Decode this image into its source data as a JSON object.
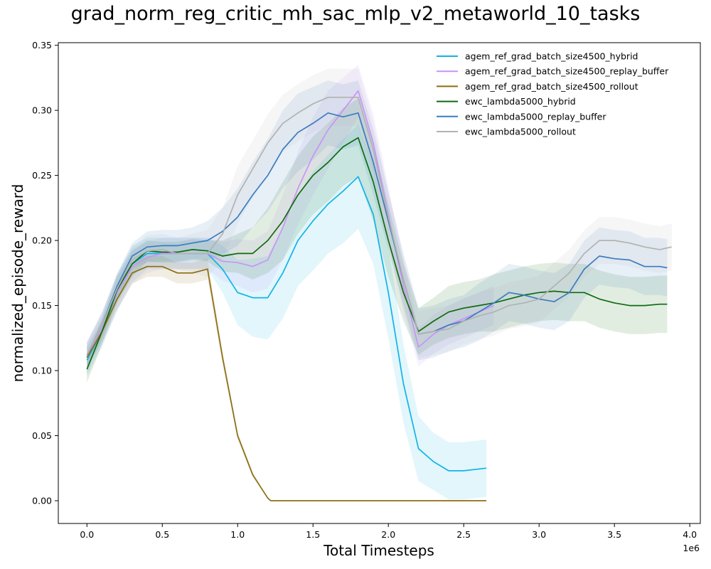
{
  "chart_data": {
    "type": "line",
    "title": "grad_norm_reg_critic_mh_sac_mlp_v2_metaworld_10_tasks",
    "xlabel": "Total Timesteps",
    "ylabel": "normalized_episode_reward",
    "x_offset_label": "1e6",
    "xlim": [
      -0.19,
      4.07
    ],
    "ylim": [
      -0.0175,
      0.352
    ],
    "x_ticks": [
      0.0,
      0.5,
      1.0,
      1.5,
      2.0,
      2.5,
      3.0,
      3.5,
      4.0
    ],
    "x_tick_labels": [
      "0.0",
      "0.5",
      "1.0",
      "1.5",
      "2.0",
      "2.5",
      "3.0",
      "3.5",
      "4.0"
    ],
    "y_ticks": [
      0.0,
      0.05,
      0.1,
      0.15,
      0.2,
      0.25,
      0.3,
      0.35
    ],
    "y_tick_labels": [
      "0.00",
      "0.05",
      "0.10",
      "0.15",
      "0.20",
      "0.25",
      "0.30",
      "0.35"
    ],
    "grid": false,
    "legend_position": "top-right",
    "series": [
      {
        "name": "agem_ref_grad_batch_size4500_hybrid",
        "color": "#12b3e6",
        "x": [
          0.0,
          0.1,
          0.2,
          0.3,
          0.4,
          0.5,
          0.6,
          0.7,
          0.8,
          0.9,
          1.0,
          1.1,
          1.2,
          1.3,
          1.4,
          1.5,
          1.6,
          1.7,
          1.8,
          1.9,
          2.0,
          2.1,
          2.2,
          2.3,
          2.4,
          2.5,
          2.65
        ],
        "y": [
          0.108,
          0.13,
          0.16,
          0.182,
          0.19,
          0.19,
          0.19,
          0.19,
          0.19,
          0.178,
          0.16,
          0.156,
          0.156,
          0.175,
          0.2,
          0.215,
          0.228,
          0.238,
          0.249,
          0.22,
          0.16,
          0.09,
          0.04,
          0.03,
          0.023,
          0.023,
          0.025
        ],
        "band": [
          0.012,
          0.012,
          0.014,
          0.014,
          0.012,
          0.012,
          0.012,
          0.012,
          0.012,
          0.018,
          0.025,
          0.03,
          0.032,
          0.035,
          0.035,
          0.038,
          0.038,
          0.04,
          0.04,
          0.038,
          0.035,
          0.03,
          0.025,
          0.022,
          0.022,
          0.022,
          0.022
        ]
      },
      {
        "name": "agem_ref_grad_batch_size4500_replay_buffer",
        "color": "#c994f7",
        "x": [
          0.0,
          0.1,
          0.2,
          0.3,
          0.4,
          0.5,
          0.6,
          0.7,
          0.8,
          0.9,
          1.0,
          1.1,
          1.2,
          1.3,
          1.4,
          1.5,
          1.6,
          1.7,
          1.8,
          1.9,
          2.0,
          2.1,
          2.2,
          2.3,
          2.4,
          2.5,
          2.6,
          2.7
        ],
        "y": [
          0.11,
          0.132,
          0.16,
          0.18,
          0.187,
          0.19,
          0.19,
          0.19,
          0.19,
          0.184,
          0.183,
          0.18,
          0.185,
          0.21,
          0.24,
          0.265,
          0.285,
          0.3,
          0.315,
          0.275,
          0.22,
          0.165,
          0.118,
          0.128,
          0.135,
          0.14,
          0.145,
          0.15
        ],
        "band": [
          0.012,
          0.012,
          0.014,
          0.014,
          0.012,
          0.012,
          0.012,
          0.012,
          0.012,
          0.015,
          0.018,
          0.02,
          0.022,
          0.025,
          0.028,
          0.03,
          0.03,
          0.025,
          0.02,
          0.022,
          0.022,
          0.02,
          0.015,
          0.015,
          0.015,
          0.015,
          0.015,
          0.015
        ]
      },
      {
        "name": "agem_ref_grad_batch_size4500_rollout",
        "color": "#8c6d12",
        "x": [
          0.0,
          0.1,
          0.2,
          0.3,
          0.4,
          0.5,
          0.6,
          0.7,
          0.8,
          0.9,
          1.0,
          1.1,
          1.2,
          1.22,
          1.4,
          1.6,
          1.8,
          2.0,
          2.2,
          2.4,
          2.65
        ],
        "y": [
          0.11,
          0.13,
          0.155,
          0.175,
          0.18,
          0.18,
          0.175,
          0.175,
          0.178,
          0.11,
          0.05,
          0.02,
          0.002,
          0.0,
          0.0,
          0.0,
          0.0,
          0.0,
          0.0,
          0.0,
          0.0
        ],
        "band": [
          0.008,
          0.008,
          0.008,
          0.008,
          0.008,
          0.008,
          0.008,
          0.008,
          0.008,
          0.005,
          0.003,
          0.002,
          0.0,
          0.0,
          0.0,
          0.0,
          0.0,
          0.0,
          0.0,
          0.0,
          0.0
        ]
      },
      {
        "name": "ewc_lambda5000_hybrid",
        "color": "#0f6b0f",
        "x": [
          0.0,
          0.1,
          0.2,
          0.3,
          0.4,
          0.5,
          0.6,
          0.7,
          0.8,
          0.9,
          1.0,
          1.1,
          1.2,
          1.3,
          1.4,
          1.5,
          1.6,
          1.7,
          1.8,
          1.9,
          2.0,
          2.1,
          2.2,
          2.3,
          2.4,
          2.5,
          2.6,
          2.7,
          2.8,
          2.9,
          3.0,
          3.1,
          3.2,
          3.3,
          3.4,
          3.5,
          3.6,
          3.7,
          3.8,
          3.85
        ],
        "y": [
          0.101,
          0.13,
          0.162,
          0.182,
          0.192,
          0.191,
          0.191,
          0.193,
          0.192,
          0.188,
          0.19,
          0.19,
          0.2,
          0.215,
          0.235,
          0.25,
          0.26,
          0.272,
          0.279,
          0.245,
          0.2,
          0.16,
          0.13,
          0.138,
          0.145,
          0.148,
          0.15,
          0.152,
          0.155,
          0.158,
          0.16,
          0.161,
          0.16,
          0.16,
          0.155,
          0.152,
          0.15,
          0.15,
          0.151,
          0.151
        ],
        "band": [
          0.01,
          0.01,
          0.01,
          0.01,
          0.008,
          0.008,
          0.008,
          0.008,
          0.008,
          0.012,
          0.015,
          0.02,
          0.025,
          0.03,
          0.03,
          0.03,
          0.03,
          0.03,
          0.03,
          0.03,
          0.028,
          0.022,
          0.018,
          0.018,
          0.02,
          0.02,
          0.02,
          0.022,
          0.022,
          0.022,
          0.022,
          0.022,
          0.022,
          0.022,
          0.022,
          0.022,
          0.022,
          0.022,
          0.022,
          0.022
        ]
      },
      {
        "name": "ewc_lambda5000_replay_buffer",
        "color": "#3a7dc0",
        "x": [
          0.0,
          0.1,
          0.2,
          0.3,
          0.4,
          0.5,
          0.6,
          0.7,
          0.8,
          0.9,
          1.0,
          1.1,
          1.2,
          1.3,
          1.4,
          1.5,
          1.6,
          1.7,
          1.8,
          1.9,
          2.0,
          2.1,
          2.2,
          2.3,
          2.4,
          2.5,
          2.6,
          2.7,
          2.8,
          2.9,
          3.0,
          3.1,
          3.2,
          3.3,
          3.4,
          3.5,
          3.6,
          3.7,
          3.8,
          3.85
        ],
        "y": [
          0.112,
          0.135,
          0.165,
          0.188,
          0.195,
          0.196,
          0.196,
          0.198,
          0.2,
          0.207,
          0.218,
          0.235,
          0.25,
          0.27,
          0.283,
          0.29,
          0.298,
          0.295,
          0.298,
          0.26,
          0.215,
          0.17,
          0.128,
          0.13,
          0.135,
          0.138,
          0.145,
          0.152,
          0.16,
          0.158,
          0.155,
          0.153,
          0.16,
          0.178,
          0.188,
          0.186,
          0.185,
          0.18,
          0.18,
          0.179
        ],
        "band": [
          0.01,
          0.01,
          0.01,
          0.01,
          0.012,
          0.012,
          0.012,
          0.012,
          0.015,
          0.018,
          0.022,
          0.025,
          0.028,
          0.03,
          0.03,
          0.028,
          0.025,
          0.025,
          0.025,
          0.025,
          0.022,
          0.02,
          0.02,
          0.02,
          0.02,
          0.02,
          0.022,
          0.022,
          0.022,
          0.022,
          0.022,
          0.022,
          0.022,
          0.022,
          0.022,
          0.022,
          0.022,
          0.022,
          0.022,
          0.022
        ]
      },
      {
        "name": "ewc_lambda5000_rollout",
        "color": "#b2b2b2",
        "x": [
          0.0,
          0.1,
          0.2,
          0.3,
          0.4,
          0.5,
          0.6,
          0.7,
          0.8,
          0.9,
          1.0,
          1.1,
          1.2,
          1.3,
          1.4,
          1.5,
          1.6,
          1.7,
          1.8,
          1.9,
          2.0,
          2.1,
          2.2,
          2.3,
          2.4,
          2.5,
          2.6,
          2.7,
          2.8,
          2.9,
          3.0,
          3.1,
          3.2,
          3.3,
          3.4,
          3.5,
          3.6,
          3.7,
          3.8,
          3.88
        ],
        "y": [
          0.112,
          0.135,
          0.163,
          0.185,
          0.192,
          0.193,
          0.19,
          0.19,
          0.19,
          0.205,
          0.235,
          0.255,
          0.275,
          0.29,
          0.298,
          0.305,
          0.31,
          0.31,
          0.31,
          0.27,
          0.218,
          0.17,
          0.128,
          0.13,
          0.132,
          0.138,
          0.142,
          0.145,
          0.15,
          0.152,
          0.155,
          0.165,
          0.175,
          0.19,
          0.2,
          0.2,
          0.198,
          0.195,
          0.193,
          0.195
        ],
        "band": [
          0.01,
          0.01,
          0.01,
          0.01,
          0.012,
          0.012,
          0.012,
          0.015,
          0.018,
          0.02,
          0.022,
          0.022,
          0.022,
          0.022,
          0.022,
          0.022,
          0.022,
          0.022,
          0.022,
          0.022,
          0.02,
          0.018,
          0.018,
          0.018,
          0.018,
          0.018,
          0.018,
          0.018,
          0.018,
          0.018,
          0.018,
          0.018,
          0.018,
          0.018,
          0.018,
          0.018,
          0.018,
          0.018,
          0.018,
          0.018
        ]
      }
    ]
  }
}
